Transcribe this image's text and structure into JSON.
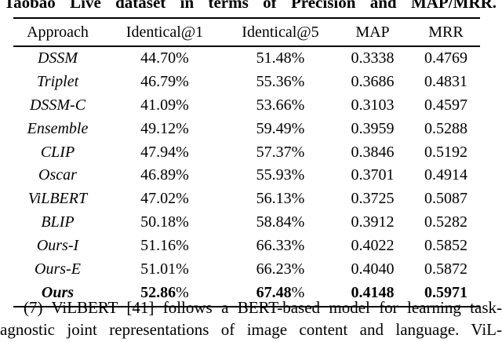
{
  "caption": "Taobao Live dataset in terms of Precision and MAP/MRR.",
  "percent_sign": "%",
  "table": {
    "columns": [
      "Approach",
      "Identical@1",
      "Identical@5",
      "MAP",
      "MRR"
    ],
    "rows": [
      {
        "approach": "DSSM",
        "identical1": "44.70",
        "identical5": "51.48",
        "map": "0.3338",
        "mrr": "0.4769",
        "bold": false
      },
      {
        "approach": "Triplet",
        "identical1": "46.79",
        "identical5": "55.36",
        "map": "0.3686",
        "mrr": "0.4831",
        "bold": false
      },
      {
        "approach": "DSSM-C",
        "identical1": "41.09",
        "identical5": "53.66",
        "map": "0.3103",
        "mrr": "0.4597",
        "bold": false
      },
      {
        "approach": "Ensemble",
        "identical1": "49.12",
        "identical5": "59.49",
        "map": "0.3959",
        "mrr": "0.5288",
        "bold": false
      },
      {
        "approach": "CLIP",
        "identical1": "47.94",
        "identical5": "57.37",
        "map": "0.3846",
        "mrr": "0.5192",
        "bold": false
      },
      {
        "approach": "Oscar",
        "identical1": "46.89",
        "identical5": "55.93",
        "map": "0.3701",
        "mrr": "0.4914",
        "bold": false
      },
      {
        "approach": "ViLBERT",
        "identical1": "47.02",
        "identical5": "56.13",
        "map": "0.3725",
        "mrr": "0.5087",
        "bold": false
      },
      {
        "approach": "BLIP",
        "identical1": "50.18",
        "identical5": "58.84",
        "map": "0.3912",
        "mrr": "0.5282",
        "bold": false
      },
      {
        "approach": "Ours-I",
        "identical1": "51.16",
        "identical5": "66.33",
        "map": "0.4022",
        "mrr": "0.5852",
        "bold": false
      },
      {
        "approach": "Ours-E",
        "identical1": "51.01",
        "identical5": "66.23",
        "map": "0.4040",
        "mrr": "0.5872",
        "bold": false
      },
      {
        "approach": "Ours",
        "identical1": "52.86",
        "identical5": "67.48",
        "map": "0.4148",
        "mrr": "0.5971",
        "bold": true
      }
    ]
  },
  "body_text": {
    "line1": "(7) ViLBERT [41] follows a BERT-based model for learning task-",
    "line2": "agnostic joint representations of image content and language. ViL-"
  }
}
